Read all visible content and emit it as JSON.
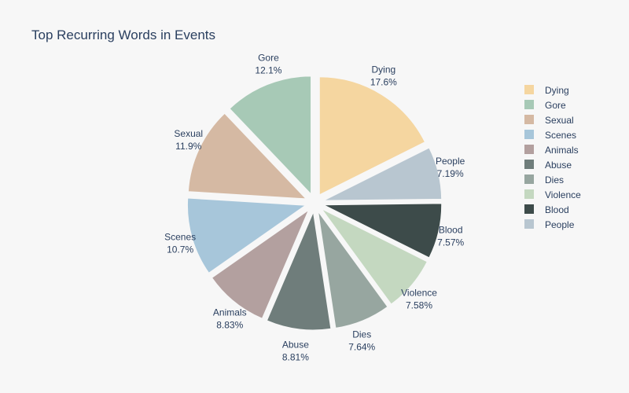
{
  "chart_data": {
    "type": "pie",
    "title": "Top Recurring Words in Events",
    "slices": [
      {
        "label": "Dying",
        "percent_text": "17.6%",
        "value": 17.6,
        "color": "#f5d6a0"
      },
      {
        "label": "People",
        "percent_text": "7.19%",
        "value": 7.19,
        "color": "#b8c6d0"
      },
      {
        "label": "Blood",
        "percent_text": "7.57%",
        "value": 7.57,
        "color": "#3d4b4a"
      },
      {
        "label": "Violence",
        "percent_text": "7.58%",
        "value": 7.58,
        "color": "#c4d8c0"
      },
      {
        "label": "Dies",
        "percent_text": "7.64%",
        "value": 7.64,
        "color": "#97a6a0"
      },
      {
        "label": "Abuse",
        "percent_text": "8.81%",
        "value": 8.81,
        "color": "#6f7d7b"
      },
      {
        "label": "Animals",
        "percent_text": "8.83%",
        "value": 8.83,
        "color": "#b3a09f"
      },
      {
        "label": "Scenes",
        "percent_text": "10.7%",
        "value": 10.7,
        "color": "#a7c6da"
      },
      {
        "label": "Sexual",
        "percent_text": "11.9%",
        "value": 11.9,
        "color": "#d5b9a3"
      },
      {
        "label": "Gore",
        "percent_text": "12.1%",
        "value": 12.1,
        "color": "#a7c9b6"
      }
    ],
    "legend": {
      "placement": "right",
      "order": [
        "Dying",
        "Gore",
        "Sexual",
        "Scenes",
        "Animals",
        "Abuse",
        "Dies",
        "Violence",
        "Blood",
        "People"
      ]
    }
  }
}
